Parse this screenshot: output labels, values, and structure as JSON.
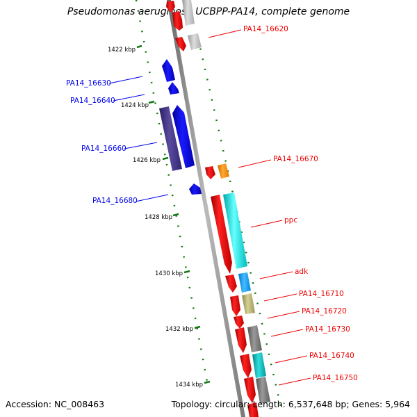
{
  "title": "Pseudomonas aeruginosa UCBPP-PA14, complete genome",
  "footer": {
    "accession": "Accession: NC_008463",
    "summary": "Topology: circular; Length: 6,537,648 bp; Genes: 5,964"
  },
  "scale_ticks": [
    "1422 kbp",
    "1424 kbp",
    "1426 kbp",
    "1428 kbp",
    "1430 kbp",
    "1432 kbp",
    "1434 kbp"
  ],
  "genes_left": [
    {
      "label": "PA14_16630",
      "color": "#0000ee"
    },
    {
      "label": "PA14_16640",
      "color": "#0000ee"
    },
    {
      "label": "PA14_16660",
      "color": "#0000ee"
    },
    {
      "label": "PA14_16680",
      "color": "#0000ee"
    }
  ],
  "genes_right": [
    {
      "label": "PA14_16620",
      "color": "#ee0000"
    },
    {
      "label": "PA14_16670",
      "color": "#ee0000"
    },
    {
      "label": "ppc",
      "color": "#ee0000"
    },
    {
      "label": "adk",
      "color": "#ee0000"
    },
    {
      "label": "PA14_16710",
      "color": "#ee0000"
    },
    {
      "label": "PA14_16720",
      "color": "#ee0000"
    },
    {
      "label": "PA14_16730",
      "color": "#ee0000"
    },
    {
      "label": "PA14_16740",
      "color": "#ee0000"
    },
    {
      "label": "PA14_16750",
      "color": "#ee0000"
    }
  ],
  "colors": {
    "forward_gene": "#ee0000",
    "reverse_gene": "#0000ee",
    "backbone": "#888888",
    "tick": "#117711"
  }
}
